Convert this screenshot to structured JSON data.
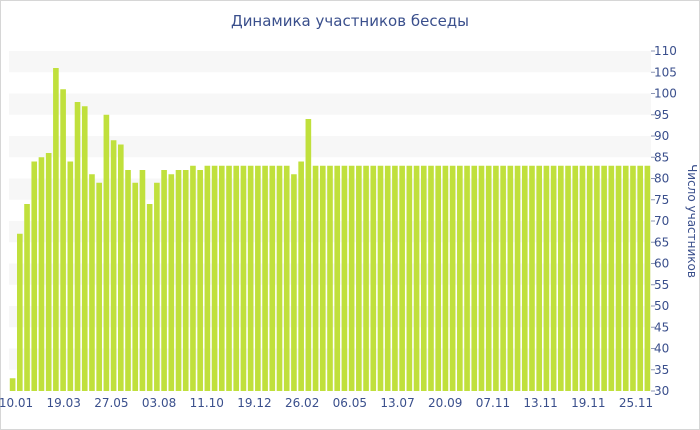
{
  "chart_data": {
    "type": "bar",
    "title": "Динамика участников беседы",
    "xlabel": "",
    "ylabel": "Число участников",
    "ylim": [
      30,
      110
    ],
    "yticks": [
      30,
      35,
      40,
      45,
      50,
      55,
      60,
      65,
      70,
      75,
      80,
      85,
      90,
      95,
      100,
      105,
      110
    ],
    "xtick_labels": [
      "10.01",
      "19.03",
      "27.05",
      "03.08",
      "11.10",
      "19.12",
      "26.02",
      "06.05",
      "13.07",
      "20.09",
      "07.11",
      "13.11",
      "19.11",
      "25.11"
    ],
    "bar_color": "#c0e03c",
    "band_color": "#f7f7f7",
    "grid": "alternating horizontal bands",
    "series": [
      {
        "values": [
          33,
          67,
          74,
          84,
          85,
          86,
          106,
          101,
          84,
          98,
          97,
          81,
          79,
          95,
          89,
          88,
          82,
          79,
          82,
          74,
          79,
          82,
          81,
          82,
          82,
          83,
          82,
          83,
          83,
          83,
          83,
          83,
          83,
          83,
          83,
          83,
          83,
          83,
          83,
          81,
          84,
          94,
          83,
          83,
          83,
          83,
          83,
          83,
          83,
          83,
          83,
          83,
          83,
          83,
          83,
          83,
          83,
          83,
          83,
          83,
          83,
          83,
          83,
          83,
          83,
          83,
          83,
          83,
          83,
          83,
          83,
          83,
          83,
          83,
          83,
          83,
          83,
          83,
          83,
          83,
          83,
          83,
          83,
          83,
          83,
          83,
          83,
          83,
          83
        ]
      }
    ]
  }
}
